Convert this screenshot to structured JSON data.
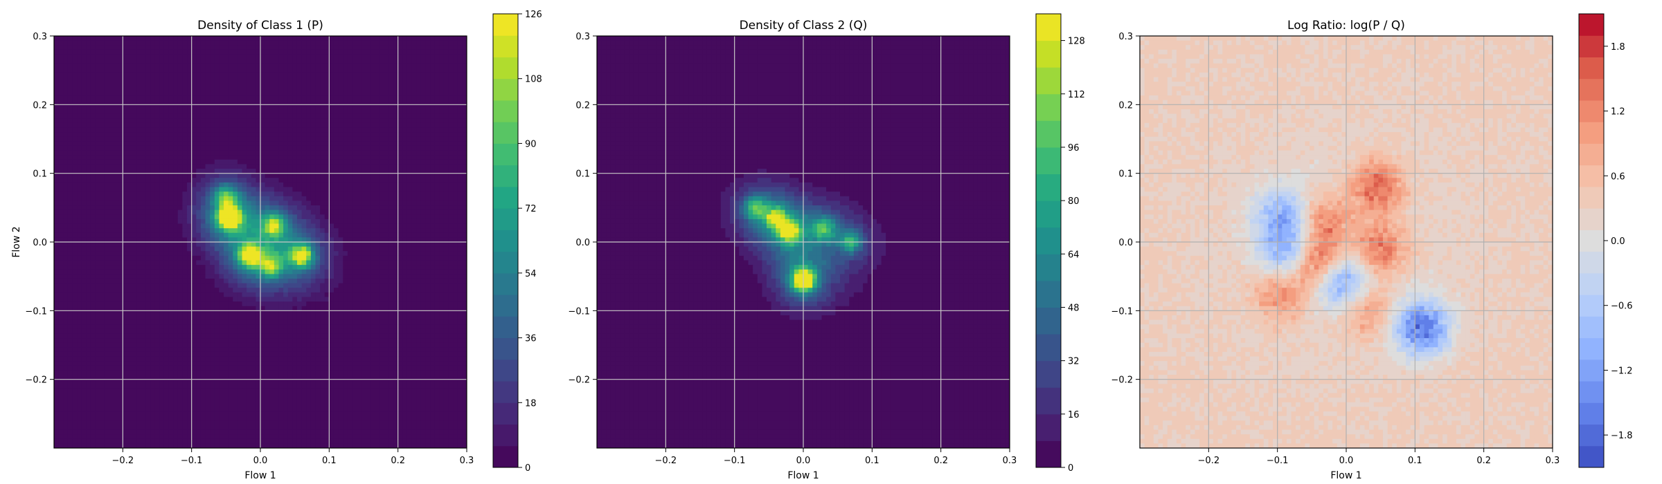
{
  "chart_data": [
    {
      "type": "heatmap",
      "title": "Density of Class 1 (P)",
      "xlabel": "Flow 1",
      "ylabel": "Flow 2",
      "xlim": [
        -0.3,
        0.3
      ],
      "ylim": [
        -0.3,
        0.3
      ],
      "xticks": [
        -0.2,
        -0.1,
        0.0,
        0.1,
        0.2,
        0.3
      ],
      "yticks": [
        -0.2,
        -0.1,
        0.0,
        0.1,
        0.2,
        0.3
      ],
      "grid": true,
      "colormap": "viridis",
      "colorbar": {
        "min": 0,
        "max": 126,
        "ticks": [
          0,
          18,
          36,
          54,
          72,
          90,
          108,
          126
        ],
        "levels": 21
      },
      "blobs": [
        {
          "x": -0.045,
          "y": 0.035,
          "peak": 126
        },
        {
          "x": -0.015,
          "y": -0.02,
          "peak": 95
        },
        {
          "x": 0.06,
          "y": -0.02,
          "peak": 90
        },
        {
          "x": 0.02,
          "y": 0.025,
          "peak": 75
        },
        {
          "x": -0.05,
          "y": 0.065,
          "peak": 55
        },
        {
          "x": 0.015,
          "y": -0.035,
          "peak": 60
        }
      ]
    },
    {
      "type": "heatmap",
      "title": "Density of Class 2 (Q)",
      "xlabel": "Flow 1",
      "ylabel": "",
      "xlim": [
        -0.3,
        0.3
      ],
      "ylim": [
        -0.3,
        0.3
      ],
      "xticks": [
        -0.2,
        -0.1,
        0.0,
        0.1,
        0.2,
        0.3
      ],
      "yticks": [
        -0.2,
        -0.1,
        0.0,
        0.1,
        0.2,
        0.3
      ],
      "grid": true,
      "colormap": "viridis",
      "colorbar": {
        "min": 0,
        "max": 136,
        "ticks": [
          0,
          16,
          32,
          48,
          64,
          80,
          96,
          112,
          128
        ],
        "levels": 17
      },
      "blobs": [
        {
          "x": 0.0,
          "y": -0.055,
          "peak": 136
        },
        {
          "x": -0.02,
          "y": 0.015,
          "peak": 90
        },
        {
          "x": -0.04,
          "y": 0.035,
          "peak": 75
        },
        {
          "x": -0.07,
          "y": 0.05,
          "peak": 65
        },
        {
          "x": 0.03,
          "y": 0.02,
          "peak": 60
        },
        {
          "x": 0.07,
          "y": 0.0,
          "peak": 55
        }
      ]
    },
    {
      "type": "heatmap",
      "title": "Log Ratio: log(P / Q)",
      "xlabel": "Flow 1",
      "ylabel": "",
      "xlim": [
        -0.3,
        0.3
      ],
      "ylim": [
        -0.3,
        0.3
      ],
      "xticks": [
        -0.2,
        -0.1,
        0.0,
        0.1,
        0.2,
        0.3
      ],
      "yticks": [
        -0.2,
        -0.1,
        0.0,
        0.1,
        0.2,
        0.3
      ],
      "grid": true,
      "colormap": "coolwarm",
      "colorbar": {
        "min": -2.1,
        "max": 2.1,
        "ticks": [
          -1.8,
          -1.2,
          -0.6,
          0.0,
          0.6,
          1.2,
          1.8
        ],
        "levels": 21
      },
      "blobs": [
        {
          "x": 0.11,
          "y": -0.125,
          "peak": -1.9
        },
        {
          "x": -0.085,
          "y": -0.015,
          "peak": -1.3
        },
        {
          "x": -0.01,
          "y": -0.055,
          "peak": -1.6
        },
        {
          "x": -0.095,
          "y": 0.04,
          "peak": -1.1
        },
        {
          "x": -0.04,
          "y": -0.03,
          "peak": 1.7
        },
        {
          "x": 0.045,
          "y": 0.08,
          "peak": 1.3
        },
        {
          "x": 0.05,
          "y": -0.01,
          "peak": 1.2
        },
        {
          "x": -0.03,
          "y": 0.03,
          "peak": 1.0
        },
        {
          "x": -0.095,
          "y": -0.075,
          "peak": 0.9
        },
        {
          "x": 0.03,
          "y": -0.1,
          "peak": 0.8
        }
      ]
    }
  ]
}
